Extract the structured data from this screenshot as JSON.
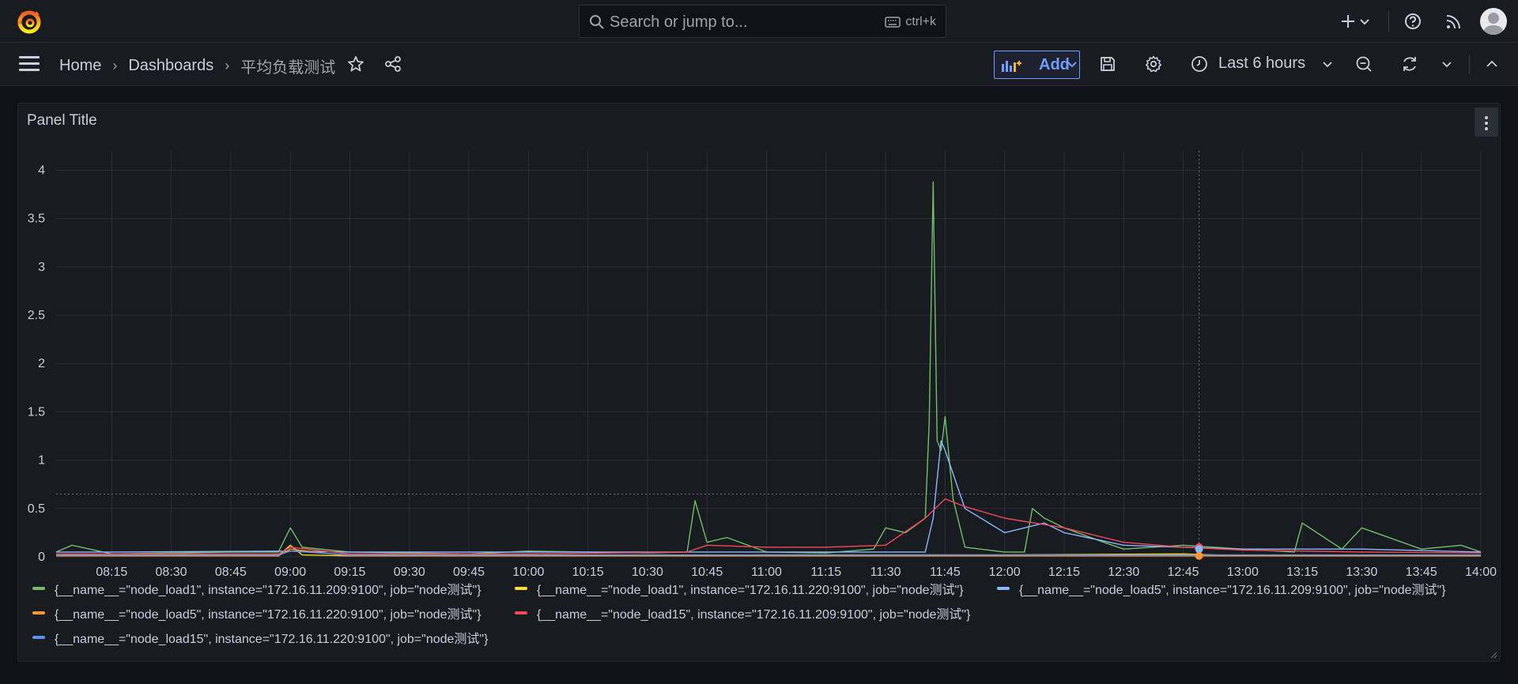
{
  "search": {
    "placeholder": "Search or jump to...",
    "shortcut": "ctrl+k"
  },
  "breadcrumb": {
    "home": "Home",
    "dashboards": "Dashboards",
    "current": "平均负载测试"
  },
  "toolbar": {
    "add_label": "Add",
    "time_range": "Last 6 hours"
  },
  "panel": {
    "title": "Panel Title"
  },
  "colors": {
    "green": "#73bf69",
    "yellow": "#fade2a",
    "lightblue": "#8ab8ff",
    "orange": "#ff9830",
    "red": "#f2495c",
    "blue": "#5794f2",
    "accent": "#6e9fff"
  },
  "icons": [
    "grafana-logo-icon",
    "search-icon",
    "keyboard-icon",
    "plus-icon",
    "chevron-down-icon",
    "help-icon",
    "news-icon",
    "avatar-icon",
    "menu-icon",
    "star-icon",
    "share-icon",
    "add-panel-icon",
    "save-icon",
    "gear-icon",
    "clock-icon",
    "zoom-out-icon",
    "refresh-icon",
    "collapse-icon"
  ],
  "chart_data": {
    "type": "line",
    "title": "Panel Title",
    "ylim": [
      0,
      4.2
    ],
    "y_ticks": [
      "0",
      "0.5",
      "1",
      "1.5",
      "2",
      "2.5",
      "3",
      "3.5",
      "4"
    ],
    "x_tick_labels": [
      "08:15",
      "08:30",
      "08:45",
      "09:00",
      "09:15",
      "09:30",
      "09:45",
      "10:00",
      "10:15",
      "10:30",
      "10:45",
      "11:00",
      "11:15",
      "11:30",
      "11:45",
      "12:00",
      "12:15",
      "12:30",
      "12:45",
      "13:00",
      "13:15",
      "13:30",
      "13:45",
      "14:00"
    ],
    "threshold": 0.65,
    "grid": true,
    "legend_position": "bottom",
    "series": [
      {
        "name": "{__name__=\"node_load1\", instance=\"172.16.11.209:9100\", job=\"node测试\"}",
        "color": "#73bf69",
        "x": [
          "08:01",
          "08:05",
          "08:15",
          "08:30",
          "08:45",
          "08:57",
          "09:00",
          "09:03",
          "09:15",
          "09:45",
          "10:00",
          "10:15",
          "10:30",
          "10:40",
          "10:42",
          "10:45",
          "10:50",
          "11:00",
          "11:15",
          "11:27",
          "11:30",
          "11:35",
          "11:40",
          "11:41",
          "11:42",
          "11:43",
          "11:44",
          "11:45",
          "11:47",
          "11:50",
          "12:00",
          "12:05",
          "12:07",
          "12:10",
          "12:15",
          "12:25",
          "12:30",
          "12:45",
          "13:00",
          "13:13",
          "13:15",
          "13:25",
          "13:30",
          "13:45",
          "13:55",
          "14:00"
        ],
        "y": [
          0.05,
          0.12,
          0.03,
          0.04,
          0.05,
          0.05,
          0.3,
          0.1,
          0.05,
          0.03,
          0.06,
          0.05,
          0.04,
          0.05,
          0.58,
          0.15,
          0.2,
          0.05,
          0.04,
          0.08,
          0.3,
          0.25,
          0.4,
          1.4,
          3.88,
          1.2,
          1.1,
          1.45,
          0.6,
          0.1,
          0.05,
          0.05,
          0.5,
          0.4,
          0.3,
          0.15,
          0.08,
          0.12,
          0.08,
          0.05,
          0.35,
          0.08,
          0.3,
          0.08,
          0.12,
          0.05
        ]
      },
      {
        "name": "{__name__=\"node_load1\", instance=\"172.16.11.220:9100\", job=\"node测试\"}",
        "color": "#fade2a",
        "x": [
          "08:01",
          "08:57",
          "09:00",
          "09:03",
          "09:15",
          "09:45",
          "10:00",
          "11:00",
          "12:00",
          "12:45",
          "13:00",
          "14:00"
        ],
        "y": [
          0.01,
          0.01,
          0.12,
          0.02,
          0.01,
          0.01,
          0.01,
          0.02,
          0.02,
          0.03,
          0.01,
          0.01
        ]
      },
      {
        "name": "{__name__=\"node_load5\", instance=\"172.16.11.209:9100\", job=\"node测试\"}",
        "color": "#8ab8ff",
        "x": [
          "08:01",
          "08:15",
          "09:00",
          "09:15",
          "09:45",
          "10:00",
          "10:45",
          "11:00",
          "11:40",
          "11:42",
          "11:44",
          "11:45",
          "11:50",
          "12:00",
          "12:10",
          "12:15",
          "12:30",
          "12:45",
          "13:00",
          "13:30",
          "14:00"
        ],
        "y": [
          0.05,
          0.05,
          0.06,
          0.05,
          0.05,
          0.05,
          0.05,
          0.05,
          0.05,
          0.4,
          1.2,
          1.1,
          0.5,
          0.25,
          0.35,
          0.25,
          0.12,
          0.1,
          0.08,
          0.08,
          0.05
        ]
      },
      {
        "name": "{__name__=\"node_load5\", instance=\"172.16.11.220:9100\", job=\"node测试\"}",
        "color": "#ff9830",
        "x": [
          "08:01",
          "08:57",
          "09:00",
          "09:15",
          "09:45",
          "10:00",
          "12:45",
          "14:00"
        ],
        "y": [
          0.01,
          0.01,
          0.08,
          0.01,
          0.01,
          0.01,
          0.01,
          0.01
        ]
      },
      {
        "name": "{__name__=\"node_load15\", instance=\"172.16.11.209:9100\", job=\"node测试\"}",
        "color": "#f2495c",
        "x": [
          "08:01",
          "08:57",
          "09:00",
          "09:15",
          "09:45",
          "10:00",
          "10:40",
          "10:45",
          "11:00",
          "11:15",
          "11:30",
          "11:40",
          "11:45",
          "11:50",
          "12:00",
          "12:15",
          "12:30",
          "12:45",
          "13:00",
          "13:15",
          "13:30",
          "14:00"
        ],
        "y": [
          0.03,
          0.03,
          0.1,
          0.03,
          0.03,
          0.03,
          0.05,
          0.12,
          0.1,
          0.1,
          0.12,
          0.4,
          0.6,
          0.52,
          0.4,
          0.3,
          0.15,
          0.1,
          0.07,
          0.06,
          0.05,
          0.04
        ]
      },
      {
        "name": "{__name__=\"node_load15\", instance=\"172.16.11.220:9100\", job=\"node测试\"}",
        "color": "#5794f2",
        "x": [
          "08:01",
          "08:57",
          "09:00",
          "09:15",
          "09:45",
          "10:00",
          "12:45",
          "14:00"
        ],
        "y": [
          0.02,
          0.02,
          0.06,
          0.02,
          0.02,
          0.02,
          0.02,
          0.02
        ]
      }
    ]
  }
}
